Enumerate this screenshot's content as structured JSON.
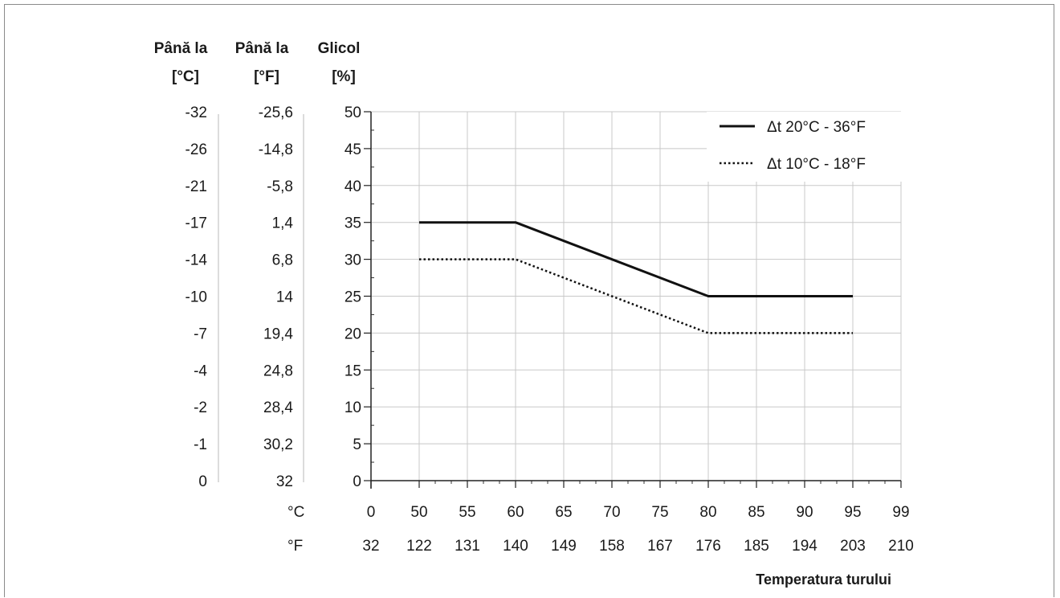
{
  "chart_data": {
    "type": "line",
    "columns": [
      {
        "header": [
          "Până la",
          "[°C]"
        ],
        "values": [
          "-32",
          "-26",
          "-21",
          "-17",
          "-14",
          "-10",
          "-7",
          "-4",
          "-2",
          "-1",
          "0"
        ]
      },
      {
        "header": [
          "Până la",
          "[°F]"
        ],
        "values": [
          "-25,6",
          "-14,8",
          "-5,8",
          "1,4",
          "6,8",
          "14",
          "19,4",
          "24,8",
          "28,4",
          "30,2",
          "32"
        ]
      },
      {
        "header": [
          "Glicol",
          "[%]"
        ],
        "values": [
          "50",
          "45",
          "40",
          "35",
          "30",
          "25",
          "20",
          "15",
          "10",
          "5",
          "0"
        ]
      }
    ],
    "x_axis": {
      "label": "Temperatura turului",
      "row_c_unit": "°C",
      "row_f_unit": "°F",
      "ticks_c": [
        "0",
        "50",
        "55",
        "60",
        "65",
        "70",
        "75",
        "80",
        "85",
        "90",
        "95",
        "99"
      ],
      "ticks_f": [
        "32",
        "122",
        "131",
        "140",
        "149",
        "158",
        "167",
        "176",
        "185",
        "194",
        "203",
        "210"
      ]
    },
    "ylim": [
      0,
      50
    ],
    "grid": true,
    "legend_position": "top-right",
    "series": [
      {
        "name": "Δt 20°C - 36°F",
        "style": "solid",
        "color": "#111111",
        "x": [
          "50",
          "60",
          "80",
          "95"
        ],
        "y": [
          35,
          35,
          25,
          25
        ]
      },
      {
        "name": "Δt 10°C - 18°F",
        "style": "dotted",
        "color": "#111111",
        "x": [
          "50",
          "60",
          "80",
          "95"
        ],
        "y": [
          30,
          30,
          20,
          20
        ]
      }
    ]
  }
}
